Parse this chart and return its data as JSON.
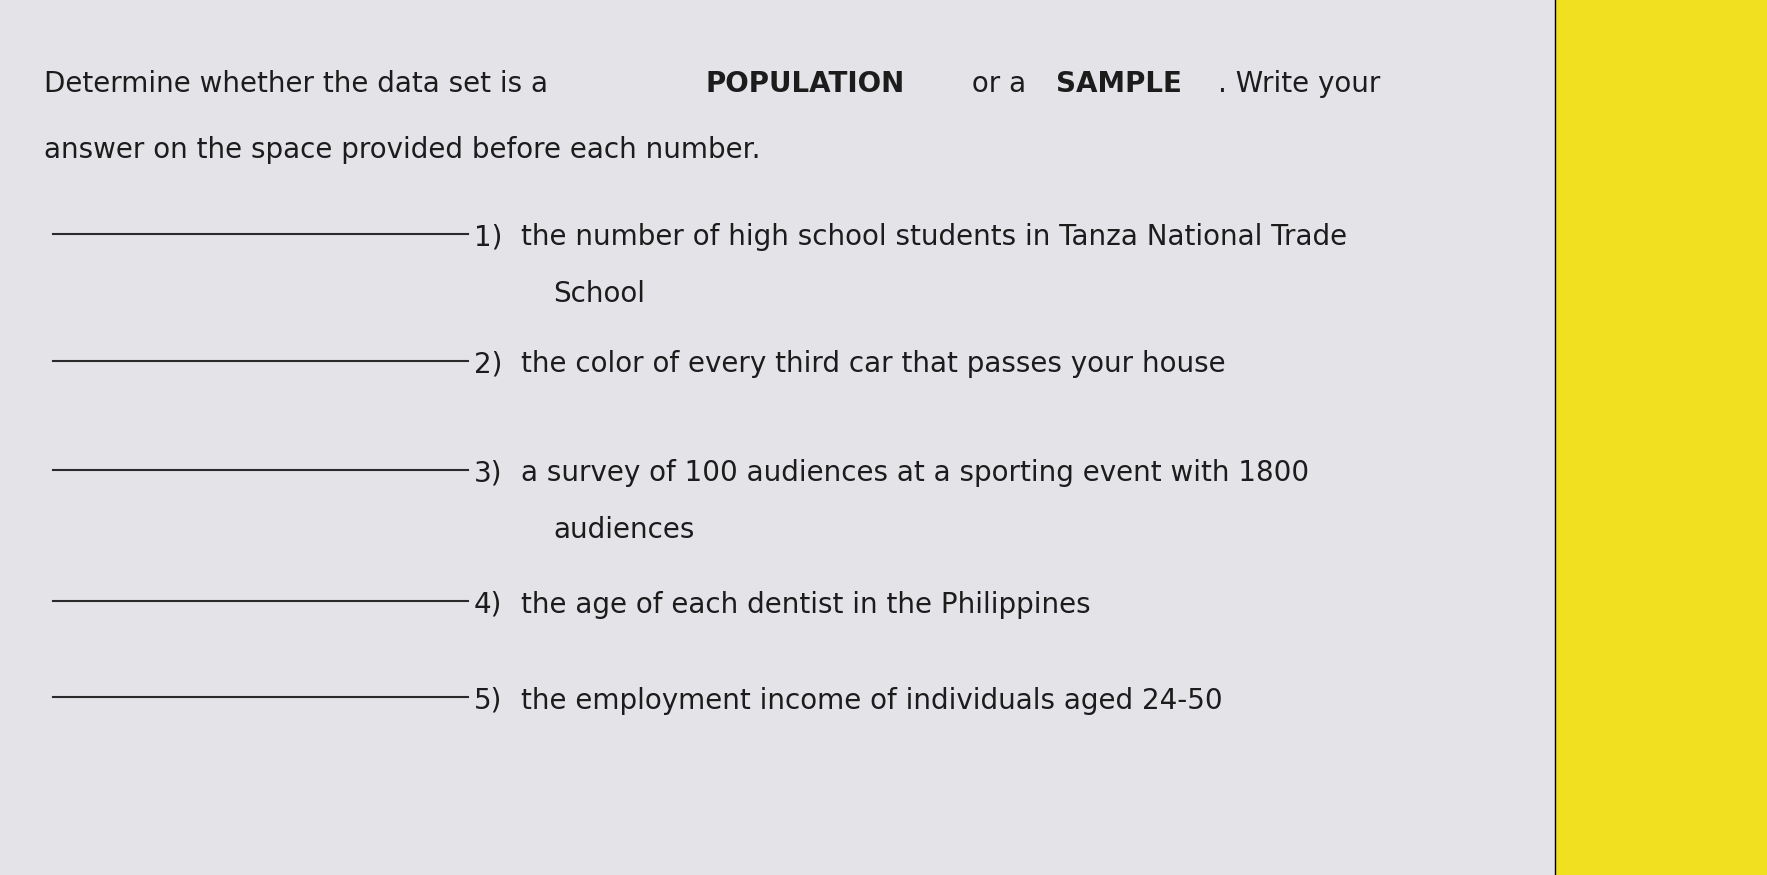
{
  "bg_color": "#c8c8cc",
  "paper_color": "#e4e4e8",
  "yellow_color": "#f0e020",
  "dark_bg": "#5a4a3a",
  "title_parts": [
    {
      "text": "Determine whether the data set is a ",
      "bold": false
    },
    {
      "text": "POPULATION",
      "bold": true
    },
    {
      "text": " or a ",
      "bold": false
    },
    {
      "text": "SAMPLE",
      "bold": true
    },
    {
      "text": ". Write your",
      "bold": false
    }
  ],
  "title_line2": "answer on the space provided before each number.",
  "items": [
    {
      "number": "1)",
      "text_line1": "the number of high school students in Tanza National Trade",
      "text_line2": "School"
    },
    {
      "number": "2)",
      "text_line1": "the color of every third car that passes your house",
      "text_line2": null
    },
    {
      "number": "3)",
      "text_line1": "a survey of 100 audiences at a sporting event with 1800",
      "text_line2": "audiences"
    },
    {
      "number": "4)",
      "text_line1": "the age of each dentist in the Philippines",
      "text_line2": null
    },
    {
      "number": "5)",
      "text_line1": "the employment income of individuals aged 24-50",
      "text_line2": null
    }
  ],
  "font_size_title": 20,
  "font_size_body": 20,
  "text_color": "#1c1c1c",
  "line_color": "#2a2a2a"
}
